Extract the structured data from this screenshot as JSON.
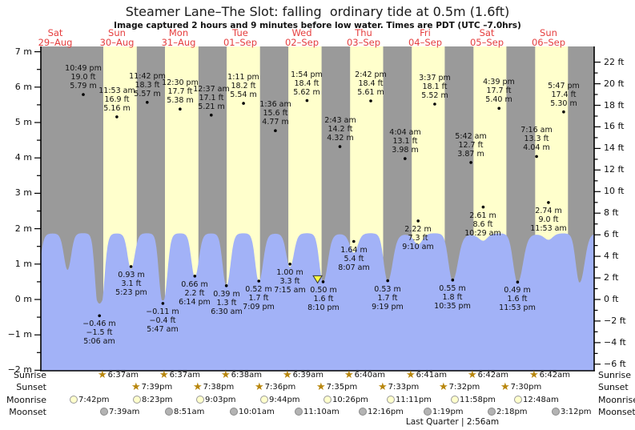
{
  "header": {
    "title": "Steamer Lane–The Slot: falling  ordinary tide at 0.5m (1.6ft)",
    "subtitle": "Image captured 2 hours and 9 minutes before low water. Times are PDT (UTC –7.0hrs)"
  },
  "colors": {
    "night_band": "#9a9a9a",
    "day_band": "#ffffcc",
    "tide_fill": "#a2b2f7",
    "axis": "#000000",
    "date_label": "#e53e3e",
    "annotation_text": "#111111",
    "star_icon": "#b8860b",
    "moonrise_icon_fill": "#ffffcc",
    "moonrise_icon_border": "#999999",
    "moonset_icon_fill": "#b3b3b3",
    "moonset_icon_border": "#888888",
    "current_marker_fill": "#ffff44",
    "dot": "#000000"
  },
  "chart_data": {
    "type": "area",
    "title": "Steamer Lane–The Slot tide curve",
    "x_axis_days": [
      {
        "name": "Sat",
        "date": "29–Aug"
      },
      {
        "name": "Sun",
        "date": "30–Aug"
      },
      {
        "name": "Mon",
        "date": "31–Aug"
      },
      {
        "name": "Tue",
        "date": "01–Sep"
      },
      {
        "name": "Wed",
        "date": "02–Sep"
      },
      {
        "name": "Thu",
        "date": "03–Sep"
      },
      {
        "name": "Fri",
        "date": "04–Sep"
      },
      {
        "name": "Sat",
        "date": "05–Sep"
      },
      {
        "name": "Sun",
        "date": "06–Sep"
      }
    ],
    "y_axis_left": {
      "unit": "m",
      "min": -2,
      "max": 7,
      "major_step": 1,
      "minor_step": 0.5,
      "labels": [
        "7 m",
        "6 m",
        "5 m",
        "4 m",
        "3 m",
        "2 m",
        "1 m",
        "0 m",
        "−1 m",
        "−2 m"
      ]
    },
    "y_axis_right": {
      "unit": "ft",
      "min": -6,
      "max": 22,
      "major_step": 2,
      "minor_step": 1,
      "labels": [
        "22 ft",
        "20 ft",
        "18 ft",
        "16 ft",
        "14 ft",
        "12 ft",
        "10 ft",
        "8 ft",
        "6 ft",
        "4 ft",
        "2 ft",
        "0 ft",
        "−2 ft",
        "−4 ft",
        "−6 ft"
      ]
    },
    "tide_events": [
      {
        "day": 0,
        "time": "10:49 pm",
        "ft": 19.0,
        "m": 5.79,
        "type": "high"
      },
      {
        "day": 1,
        "time": "5:06 am",
        "ft": -1.5,
        "m": -0.46,
        "type": "low"
      },
      {
        "day": 1,
        "time": "11:53 am",
        "ft": 16.9,
        "m": 5.16,
        "type": "high"
      },
      {
        "day": 1,
        "time": "5:23 pm",
        "ft": 3.1,
        "m": 0.93,
        "type": "low"
      },
      {
        "day": 1,
        "time": "11:42 pm",
        "ft": 18.3,
        "m": 5.57,
        "type": "high"
      },
      {
        "day": 2,
        "time": "5:47 am",
        "ft": -0.4,
        "m": -0.11,
        "type": "low"
      },
      {
        "day": 2,
        "time": "12:30 pm",
        "ft": 17.7,
        "m": 5.38,
        "type": "high"
      },
      {
        "day": 2,
        "time": "6:14 pm",
        "ft": 2.2,
        "m": 0.66,
        "type": "low"
      },
      {
        "day": 3,
        "time": "12:37 am",
        "ft": 17.1,
        "m": 5.21,
        "type": "high"
      },
      {
        "day": 3,
        "time": "6:30 am",
        "ft": 1.3,
        "m": 0.39,
        "type": "low"
      },
      {
        "day": 3,
        "time": "1:11 pm",
        "ft": 18.2,
        "m": 5.54,
        "type": "high"
      },
      {
        "day": 3,
        "time": "7:09 pm",
        "ft": 1.7,
        "m": 0.52,
        "type": "low"
      },
      {
        "day": 4,
        "time": "1:36 am",
        "ft": 15.6,
        "m": 4.77,
        "type": "high"
      },
      {
        "day": 4,
        "time": "7:15 am",
        "ft": 3.3,
        "m": 1.0,
        "type": "low"
      },
      {
        "day": 4,
        "time": "1:54 pm",
        "ft": 18.4,
        "m": 5.62,
        "type": "high"
      },
      {
        "day": 4,
        "time": "8:10 pm",
        "ft": 1.6,
        "m": 0.5,
        "type": "low"
      },
      {
        "day": 5,
        "time": "2:43 am",
        "ft": 14.2,
        "m": 4.32,
        "type": "high"
      },
      {
        "day": 5,
        "time": "8:07 am",
        "ft": 5.4,
        "m": 1.64,
        "type": "low"
      },
      {
        "day": 5,
        "time": "2:42 pm",
        "ft": 18.4,
        "m": 5.61,
        "type": "high"
      },
      {
        "day": 5,
        "time": "9:19 pm",
        "ft": 1.7,
        "m": 0.53,
        "type": "low"
      },
      {
        "day": 6,
        "time": "4:04 am",
        "ft": 13.1,
        "m": 3.98,
        "type": "high"
      },
      {
        "day": 6,
        "time": "9:10 am",
        "ft": 7.3,
        "m": 2.22,
        "type": "low"
      },
      {
        "day": 6,
        "time": "3:37 pm",
        "ft": 18.1,
        "m": 5.52,
        "type": "high"
      },
      {
        "day": 6,
        "time": "10:35 pm",
        "ft": 1.8,
        "m": 0.55,
        "type": "low"
      },
      {
        "day": 7,
        "time": "5:42 am",
        "ft": 12.7,
        "m": 3.87,
        "type": "high"
      },
      {
        "day": 7,
        "time": "10:29 am",
        "ft": 8.6,
        "m": 2.61,
        "type": "low"
      },
      {
        "day": 7,
        "time": "4:39 pm",
        "ft": 17.7,
        "m": 5.4,
        "type": "high"
      },
      {
        "day": 7,
        "time": "11:53 pm",
        "ft": 1.6,
        "m": 0.49,
        "type": "low"
      },
      {
        "day": 8,
        "time": "7:16 am",
        "ft": 13.3,
        "m": 4.04,
        "type": "high"
      },
      {
        "day": 8,
        "time": "11:53 am",
        "ft": 9.0,
        "m": 2.74,
        "type": "low"
      },
      {
        "day": 8,
        "time": "5:47 pm",
        "ft": 17.4,
        "m": 5.3,
        "type": "high"
      }
    ],
    "current_time_marker": {
      "day": 4,
      "time": "6:01 pm"
    }
  },
  "astro": {
    "row_labels": [
      "Sunrise",
      "Sunset",
      "Moonrise",
      "Moonset"
    ],
    "sunrise": [
      {
        "day": 1,
        "time": "6:37am"
      },
      {
        "day": 2,
        "time": "6:37am"
      },
      {
        "day": 3,
        "time": "6:38am"
      },
      {
        "day": 4,
        "time": "6:39am"
      },
      {
        "day": 5,
        "time": "6:40am"
      },
      {
        "day": 6,
        "time": "6:41am"
      },
      {
        "day": 7,
        "time": "6:42am"
      },
      {
        "day": 8,
        "time": "6:42am"
      }
    ],
    "sunset": [
      {
        "day": 1,
        "time": "7:39pm"
      },
      {
        "day": 2,
        "time": "7:38pm"
      },
      {
        "day": 3,
        "time": "7:36pm"
      },
      {
        "day": 4,
        "time": "7:35pm"
      },
      {
        "day": 5,
        "time": "7:33pm"
      },
      {
        "day": 6,
        "time": "7:32pm"
      },
      {
        "day": 7,
        "time": "7:30pm"
      }
    ],
    "moonrise": [
      {
        "day": 0,
        "time": "7:42pm"
      },
      {
        "day": 1,
        "time": "8:23pm"
      },
      {
        "day": 2,
        "time": "9:03pm"
      },
      {
        "day": 3,
        "time": "9:44pm"
      },
      {
        "day": 4,
        "time": "10:26pm"
      },
      {
        "day": 5,
        "time": "11:11pm"
      },
      {
        "day": 6,
        "time": "11:58pm"
      },
      {
        "day": 8,
        "time": "12:48am"
      }
    ],
    "moonset": [
      {
        "day": 1,
        "time": "7:39am"
      },
      {
        "day": 2,
        "time": "8:51am"
      },
      {
        "day": 3,
        "time": "10:01am"
      },
      {
        "day": 4,
        "time": "11:10am"
      },
      {
        "day": 5,
        "time": "12:16pm"
      },
      {
        "day": 6,
        "time": "1:19pm"
      },
      {
        "day": 7,
        "time": "2:18pm"
      },
      {
        "day": 8,
        "time": "3:12pm"
      }
    ],
    "phase_note": "Last Quarter | 2:56am"
  }
}
